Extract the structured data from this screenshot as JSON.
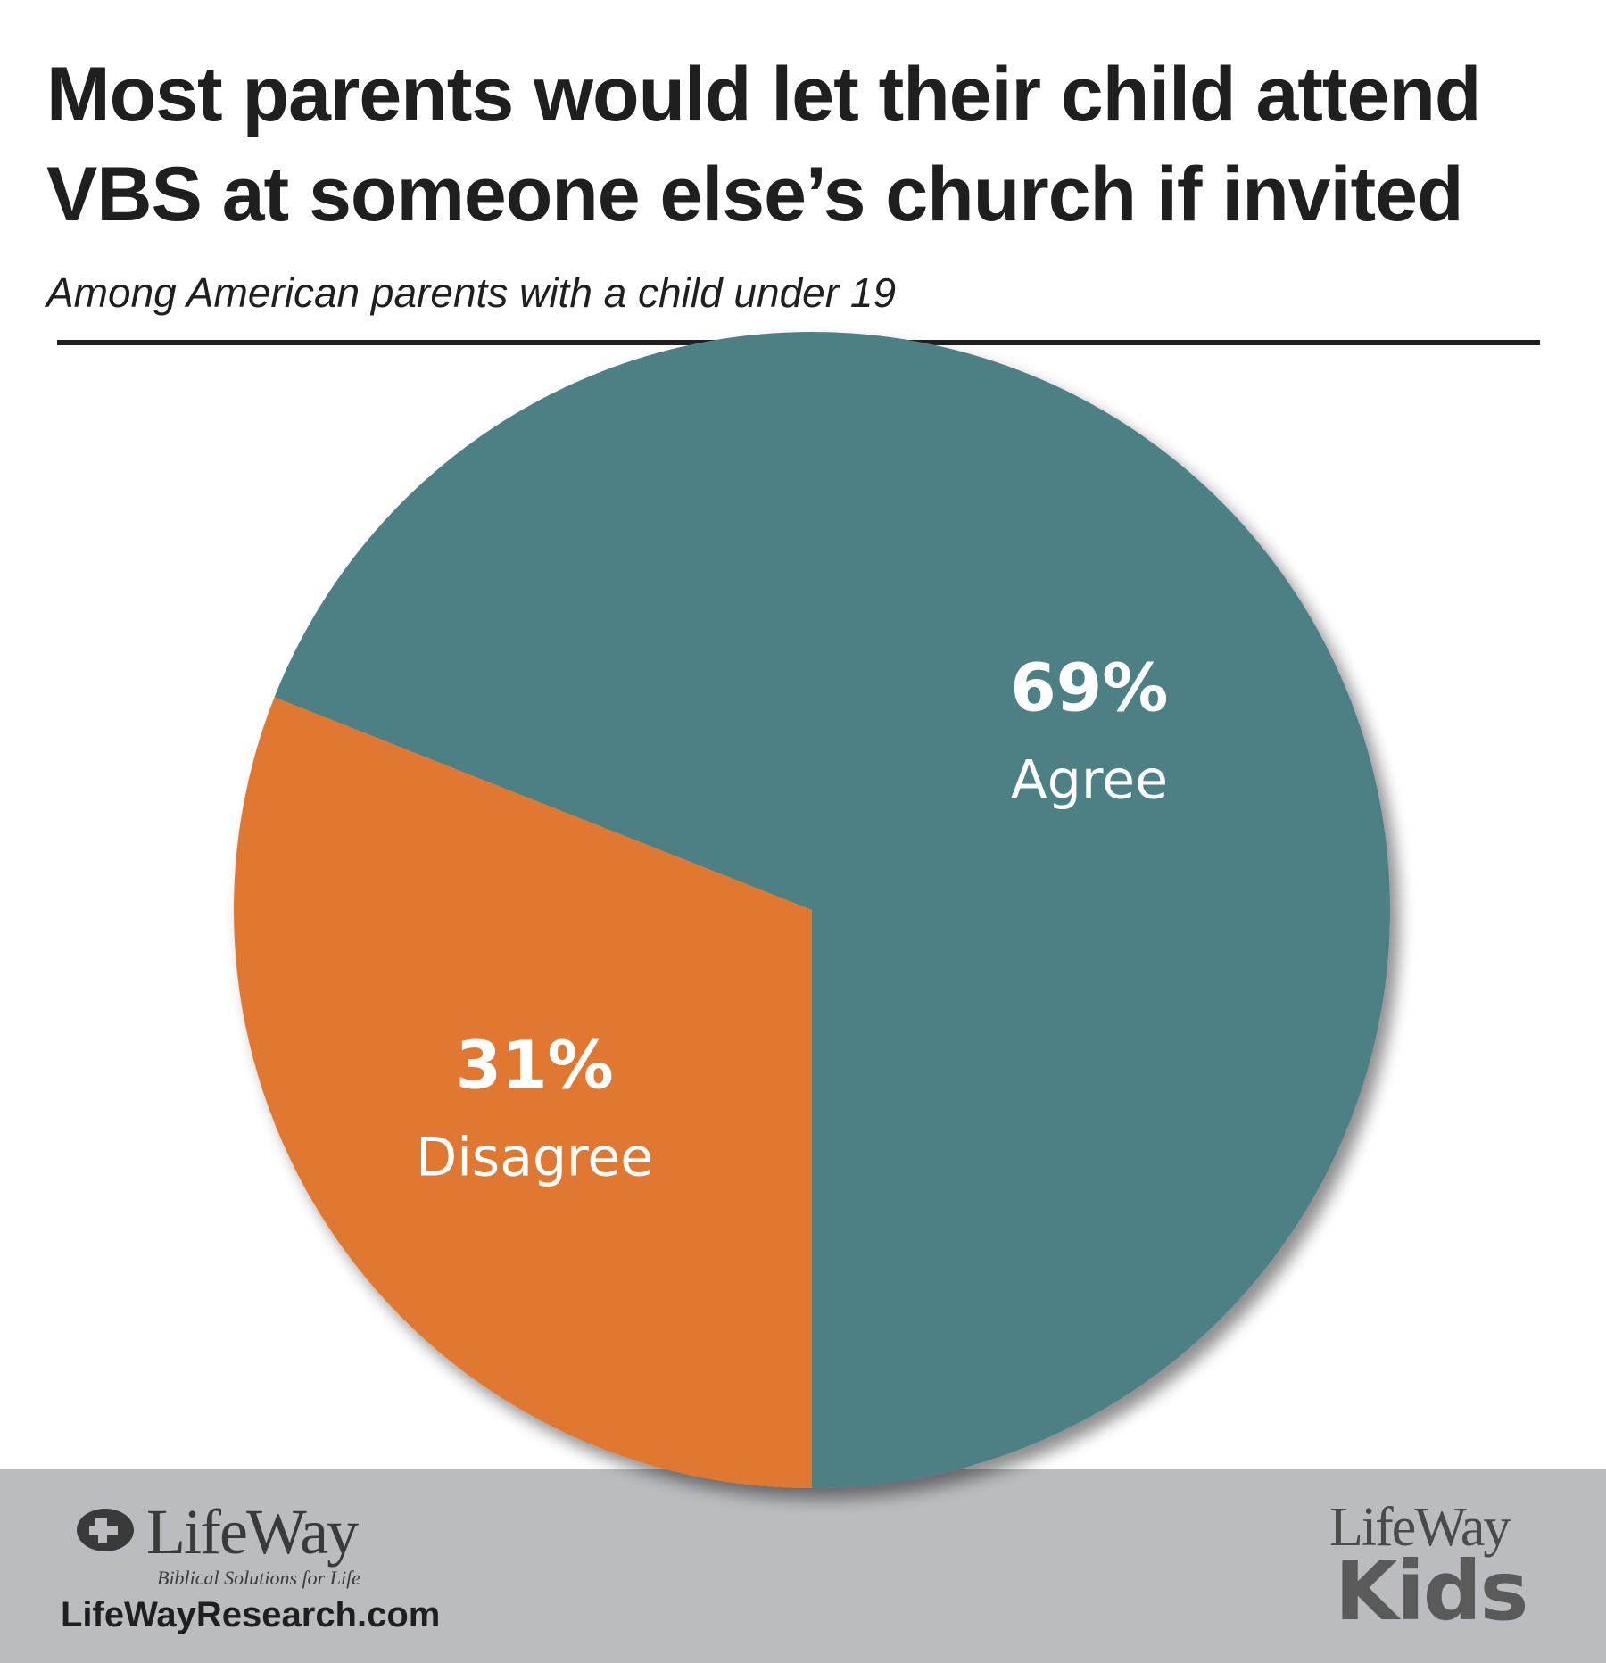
{
  "title": "Most parents would let their child attend VBS at someone else’s church if invited",
  "subtitle": "Among American parents with a child under 19",
  "chart_data": {
    "type": "pie",
    "title": "Most parents would let their child attend VBS at someone else’s church if invited",
    "subtitle": "Among American parents with a child under 19",
    "slices": [
      {
        "label": "Agree",
        "value": 69,
        "value_label": "69%",
        "color": "#4d8084"
      },
      {
        "label": "Disagree",
        "value": 31,
        "value_label": "31%",
        "color": "#e07831"
      }
    ],
    "legend": "none",
    "label_color": "#ffffff"
  },
  "footer": {
    "background": "#bbbcbf",
    "left_logo_text": "LifeWay",
    "left_logo_tagline": "Biblical Solutions for Life",
    "url": "LifeWayResearch.com",
    "right_logo_text": "LifeWay",
    "right_logo_sub": "Kids"
  }
}
